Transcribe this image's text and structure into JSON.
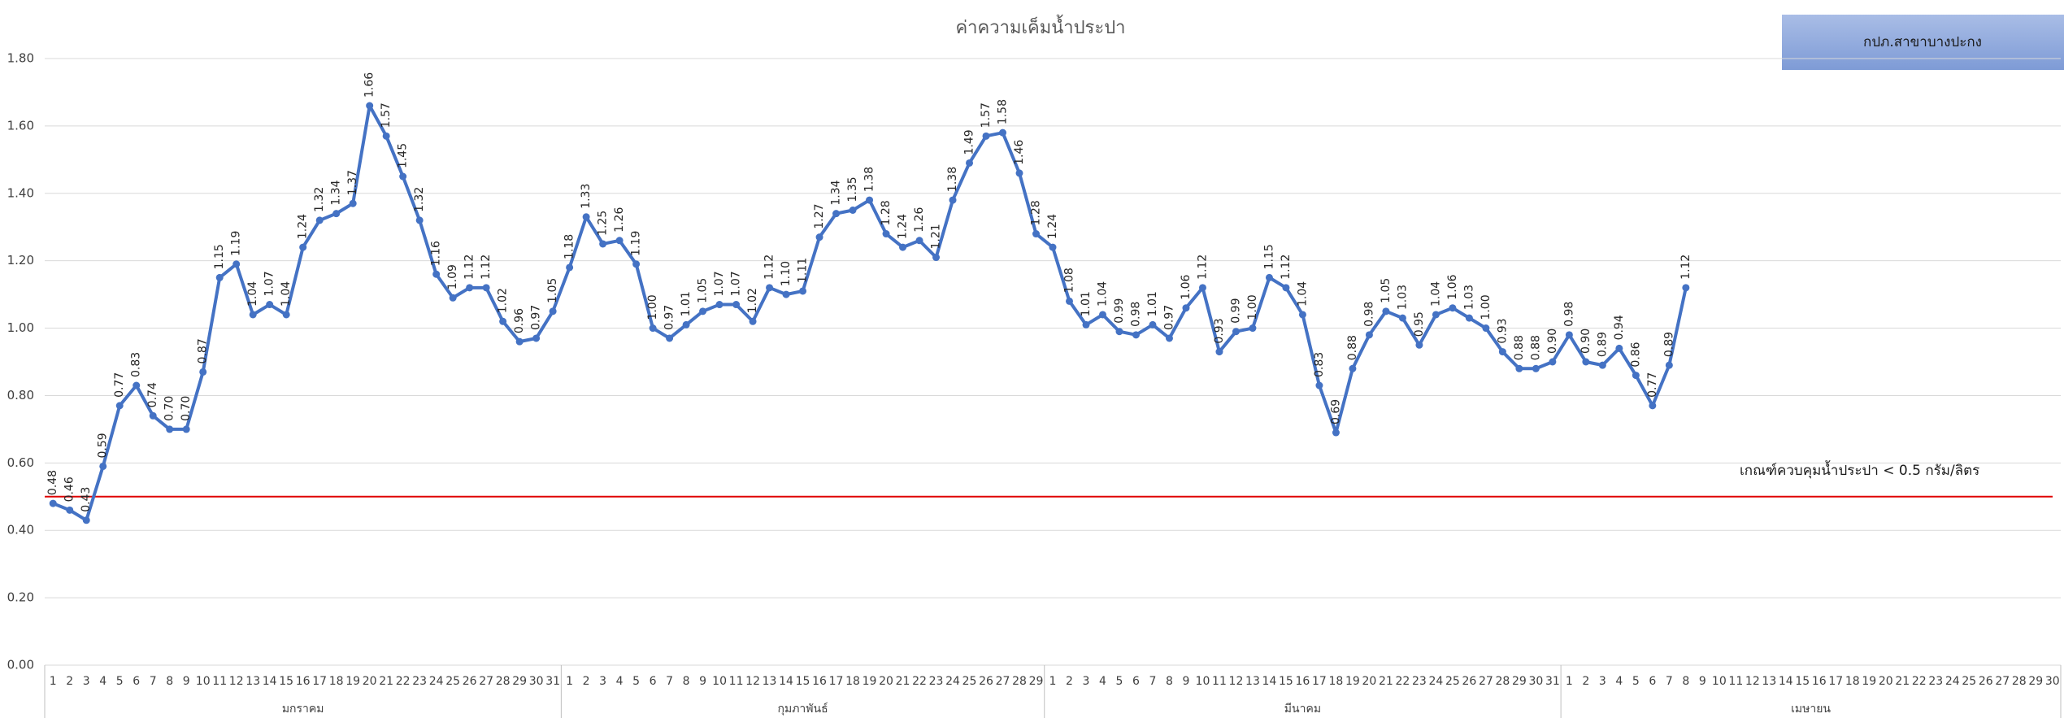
{
  "chart_data": {
    "type": "line",
    "title": "ค่าความเค็มน้ำประปา",
    "badge": "กปภ.สาขาบางปะกง",
    "category_groups": [
      {
        "label": "มกราคม",
        "categories": [
          "1",
          "2",
          "3",
          "4",
          "5",
          "6",
          "7",
          "8",
          "9",
          "10",
          "11",
          "12",
          "13",
          "14",
          "15",
          "16",
          "17",
          "18",
          "19",
          "20",
          "21",
          "22",
          "23",
          "24",
          "25",
          "26",
          "27",
          "28",
          "29",
          "30",
          "31"
        ]
      },
      {
        "label": "กุมภาพันธ์",
        "categories": [
          "1",
          "2",
          "3",
          "4",
          "5",
          "6",
          "7",
          "8",
          "9",
          "10",
          "11",
          "12",
          "13",
          "14",
          "15",
          "16",
          "17",
          "18",
          "19",
          "20",
          "21",
          "22",
          "23",
          "24",
          "25",
          "26",
          "27",
          "28",
          "29"
        ]
      },
      {
        "label": "มีนาคม",
        "categories": [
          "1",
          "2",
          "3",
          "4",
          "5",
          "6",
          "7",
          "8",
          "9",
          "10",
          "11",
          "12",
          "13",
          "14",
          "15",
          "16",
          "17",
          "18",
          "19",
          "20",
          "21",
          "22",
          "23",
          "24",
          "25",
          "26",
          "27",
          "28",
          "29",
          "30",
          "31"
        ]
      },
      {
        "label": "เมษายน",
        "categories": [
          "1",
          "2",
          "3",
          "4",
          "5",
          "6",
          "7",
          "8",
          "9",
          "10",
          "11",
          "12",
          "13",
          "14",
          "15",
          "16",
          "17",
          "18",
          "19",
          "20",
          "21",
          "22",
          "23",
          "24",
          "25",
          "26",
          "27",
          "28",
          "29",
          "30"
        ]
      }
    ],
    "series": [
      {
        "color": "#4472c4",
        "values": [
          0.48,
          0.46,
          0.43,
          0.59,
          0.77,
          0.83,
          0.74,
          0.7,
          0.7,
          0.87,
          1.15,
          1.19,
          1.04,
          1.07,
          1.04,
          1.24,
          1.32,
          1.34,
          1.37,
          1.66,
          1.57,
          1.45,
          1.32,
          1.16,
          1.09,
          1.12,
          1.12,
          1.02,
          0.96,
          0.97,
          1.05,
          1.18,
          1.33,
          1.25,
          1.26,
          1.19,
          1.0,
          0.97,
          1.01,
          1.05,
          1.07,
          1.07,
          1.02,
          1.12,
          1.1,
          1.11,
          1.27,
          1.34,
          1.35,
          1.38,
          1.28,
          1.24,
          1.26,
          1.21,
          1.38,
          1.49,
          1.57,
          1.58,
          1.46,
          1.28,
          1.24,
          1.08,
          1.01,
          1.04,
          0.99,
          0.98,
          1.01,
          0.97,
          1.06,
          1.12,
          0.93,
          0.99,
          1.0,
          1.15,
          1.12,
          1.04,
          0.83,
          0.69,
          0.88,
          0.98,
          1.05,
          1.03,
          0.95,
          1.04,
          1.06,
          1.03,
          1.0,
          0.93,
          0.88,
          0.88,
          0.9,
          0.98,
          0.9,
          0.89,
          0.94,
          0.86,
          0.77,
          0.89,
          1.12,
          null,
          null,
          null,
          null,
          null,
          null,
          null,
          null,
          null,
          null,
          null,
          null,
          null,
          null,
          null,
          null,
          null,
          null,
          null,
          null,
          null,
          null
        ],
        "value_labels": [
          "0.48",
          "0.46",
          "0.43",
          "0.59",
          "0.77",
          "0.83",
          "0.74",
          "0.70",
          "0.70",
          "0.87",
          "1.15",
          "1.19",
          "1.04",
          "1.07",
          "1.04",
          "1.24",
          "1.32",
          "1.34",
          "1.37",
          "1.66",
          "1.57",
          "1.45",
          "1.32",
          "1.16",
          "1.09",
          "1.12",
          "1.12",
          "1.02",
          "0.96",
          "0.97",
          "1.05",
          "1.18",
          "1.33",
          "1.25",
          "1.26",
          "1.19",
          "1.00",
          "0.97",
          "1.01",
          "1.05",
          "1.07",
          "1.07",
          "1.02",
          "1.12",
          "1.10",
          "1.11",
          "1.27",
          "1.34",
          "1.35",
          "1.38",
          "1.28",
          "1.24",
          "1.26",
          "1.21",
          "1.38",
          "1.49",
          "1.57",
          "1.58",
          "1.46",
          "1.28",
          "1.24",
          "1.08",
          "1.01",
          "1.04",
          "0.99",
          "0.98",
          "1.01",
          "0.97",
          "1.06",
          "1.12",
          "0.93",
          "0.99",
          "1.00",
          "1.15",
          "1.12",
          "1.04",
          "0.83",
          "0.69",
          "0.88",
          "0.98",
          "1.05",
          "1.03",
          "0.95",
          "1.04",
          "1.06",
          "1.03",
          "1.00",
          "0.93",
          "0.88",
          "0.88",
          "0.90",
          "0.98",
          "0.90",
          "0.89",
          "0.94",
          "0.86",
          "0.77",
          "0.89",
          "1.12",
          null,
          null,
          null,
          null,
          null,
          null,
          null,
          null,
          null,
          null,
          null,
          null,
          null,
          null,
          null,
          null,
          null,
          null,
          null,
          null,
          null,
          null
        ]
      }
    ],
    "reference_line": {
      "value": 0.5,
      "color": "#e00000",
      "label": "เกณฑ์ควบคุมน้ำประปา < 0.5 กรัม/ลิตร"
    },
    "ylim": [
      0,
      1.8
    ],
    "yticks": [
      {
        "value": 0,
        "label": "0.00"
      },
      {
        "value": 0.2,
        "label": "0.20"
      },
      {
        "value": 0.4,
        "label": "0.40"
      },
      {
        "value": 0.6,
        "label": "0.60"
      },
      {
        "value": 0.8,
        "label": "0.80"
      },
      {
        "value": 1.0,
        "label": "1.00"
      },
      {
        "value": 1.2,
        "label": "1.20"
      },
      {
        "value": 1.4,
        "label": "1.40"
      },
      {
        "value": 1.6,
        "label": "1.60"
      },
      {
        "value": 1.8,
        "label": "1.80"
      }
    ],
    "grid": true
  }
}
